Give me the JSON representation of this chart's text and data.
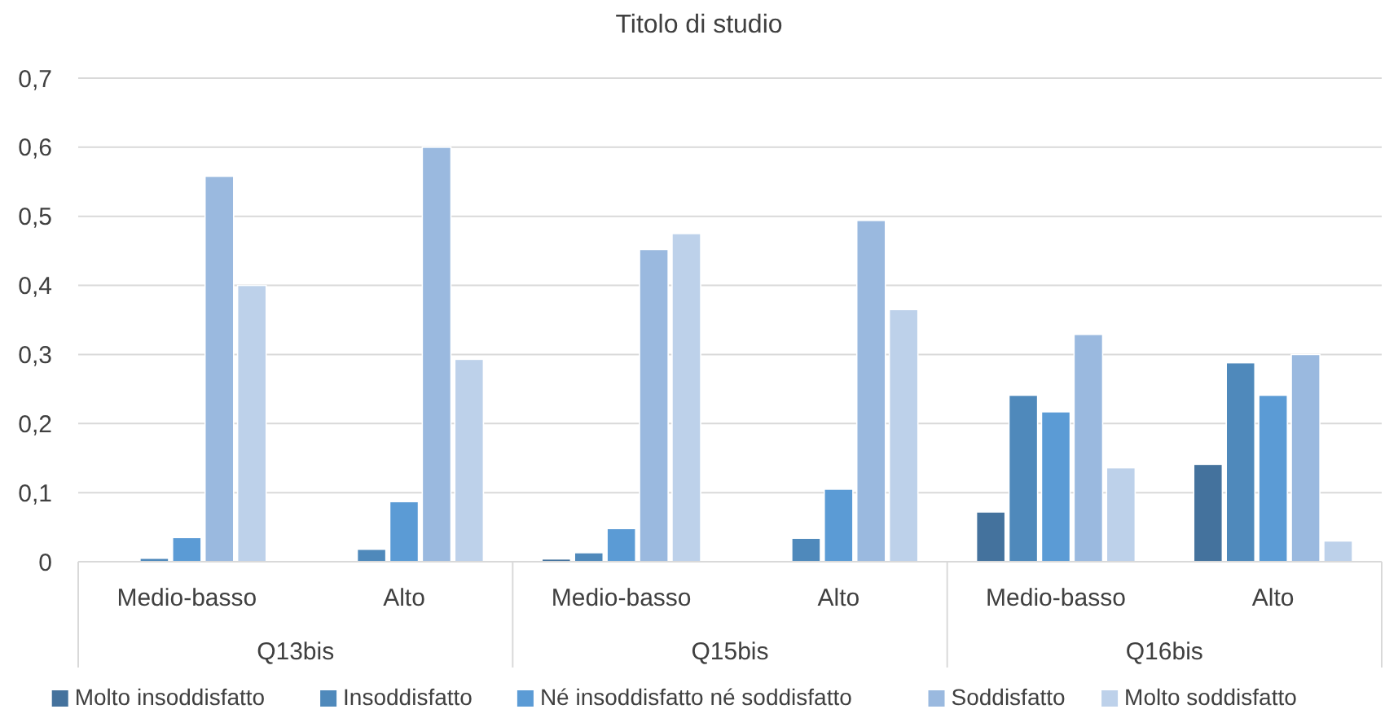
{
  "chart_data": {
    "type": "bar",
    "title": "Titolo di studio",
    "categories": [
      "Medio-basso",
      "Alto",
      "Medio-basso",
      "Alto",
      "Medio-basso",
      "Alto"
    ],
    "annotations": [
      "Q13bis",
      "Q15bis",
      "Q16bis"
    ],
    "series": [
      {
        "name": "Molto insoddisfatto",
        "color": "#44729d",
        "values": [
          0,
          0,
          0.004,
          0,
          0.072,
          0.141
        ]
      },
      {
        "name": "Insoddisfatto",
        "color": "#4f89bb",
        "values": [
          0.005,
          0.018,
          0.013,
          0.034,
          0.241,
          0.288
        ]
      },
      {
        "name": "Né insoddisfatto né soddisfatto",
        "color": "#5b9bd5",
        "values": [
          0.035,
          0.087,
          0.048,
          0.105,
          0.217,
          0.241
        ]
      },
      {
        "name": "Soddisfatto",
        "color": "#9ab9df",
        "values": [
          0.558,
          0.6,
          0.452,
          0.494,
          0.329,
          0.3
        ]
      },
      {
        "name": "Molto soddisfatto",
        "color": "#bdd1ea",
        "values": [
          0.4,
          0.293,
          0.475,
          0.365,
          0.136,
          0.03
        ]
      }
    ],
    "ylim": [
      0,
      0.7
    ],
    "yticks": [
      {
        "value": 0,
        "label": "0"
      },
      {
        "value": 0.1,
        "label": "0,1"
      },
      {
        "value": 0.2,
        "label": "0,2"
      },
      {
        "value": 0.3,
        "label": "0,3"
      },
      {
        "value": 0.4,
        "label": "0,4"
      },
      {
        "value": 0.5,
        "label": "0,5"
      },
      {
        "value": 0.6,
        "label": "0,6"
      },
      {
        "value": 0.7,
        "label": "0,7"
      }
    ],
    "grid": "y",
    "legend": "bottom"
  }
}
